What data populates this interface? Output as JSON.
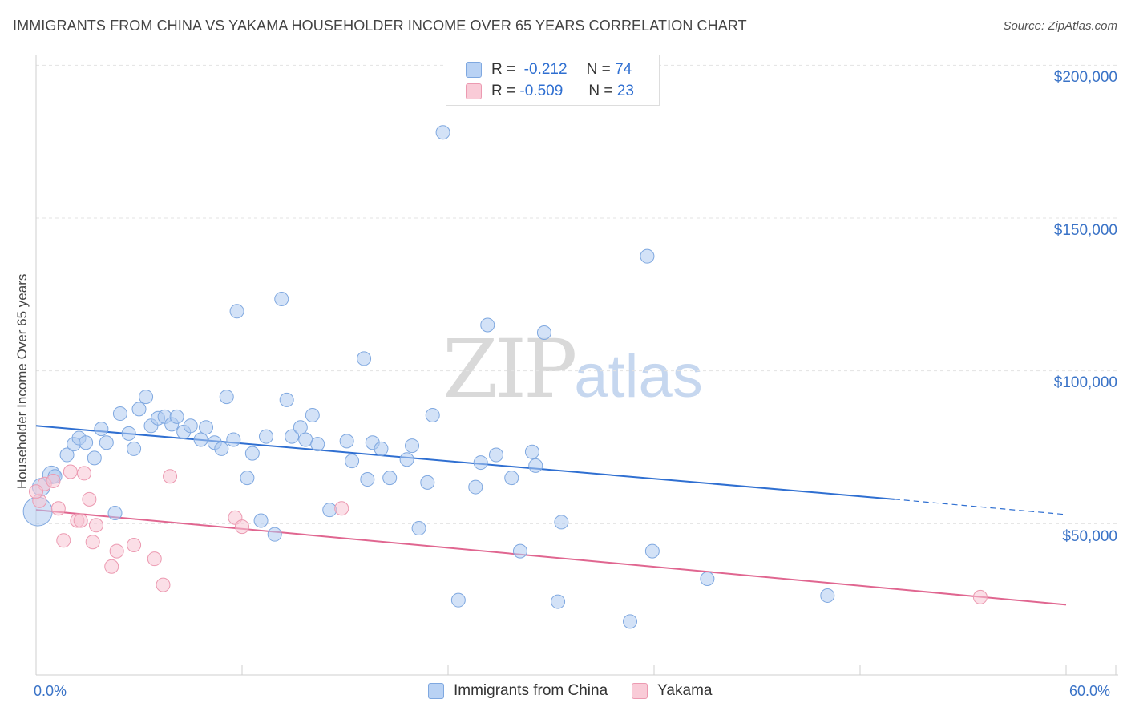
{
  "header": {
    "title": "IMMIGRANTS FROM CHINA VS YAKAMA HOUSEHOLDER INCOME OVER 65 YEARS CORRELATION CHART",
    "source": "Source: ZipAtlas.com"
  },
  "watermark": {
    "zip": "ZIP",
    "atlas": "atlas"
  },
  "legend": {
    "r_label": "R =",
    "n_label": "N =",
    "series": [
      {
        "name": "Immigrants from China",
        "r": "-0.212",
        "n": "74",
        "color": "#2f6fd1"
      },
      {
        "name": "Yakama",
        "r": "-0.509",
        "n": "23",
        "color": "#e06690"
      }
    ]
  },
  "axes": {
    "ylabel": "Householder Income Over 65 years",
    "y_ticks": [
      "$200,000",
      "$150,000",
      "$100,000",
      "$50,000"
    ],
    "x_min_label": "0.0%",
    "x_max_label": "60.0%"
  },
  "chart_data": {
    "type": "scatter",
    "title": "IMMIGRANTS FROM CHINA VS YAKAMA HOUSEHOLDER INCOME OVER 65 YEARS CORRELATION CHART",
    "xlabel": "",
    "ylabel": "Householder Income Over 65 years",
    "xlim": [
      0,
      60
    ],
    "ylim": [
      0,
      210000
    ],
    "y_tick_values": [
      50000,
      100000,
      150000,
      200000
    ],
    "grid": true,
    "series": [
      {
        "name": "Immigrants from China",
        "r": -0.212,
        "n": 74,
        "trend": {
          "x0": 0,
          "y0": 82000,
          "x1": 50,
          "y1": 58000,
          "dash_to_x": 60,
          "dash_to_y": 53000
        },
        "points": [
          [
            0.1,
            54000
          ],
          [
            0.3,
            62000
          ],
          [
            0.9,
            66000
          ],
          [
            1.1,
            65500
          ],
          [
            1.8,
            72500
          ],
          [
            2.2,
            76000
          ],
          [
            2.5,
            78000
          ],
          [
            2.9,
            76500
          ],
          [
            3.4,
            71500
          ],
          [
            3.8,
            81000
          ],
          [
            4.1,
            76500
          ],
          [
            4.6,
            53500
          ],
          [
            4.9,
            86000
          ],
          [
            5.4,
            79500
          ],
          [
            5.7,
            74500
          ],
          [
            6.0,
            87500
          ],
          [
            6.4,
            91500
          ],
          [
            6.7,
            82000
          ],
          [
            7.1,
            84500
          ],
          [
            7.5,
            85000
          ],
          [
            7.9,
            82500
          ],
          [
            8.2,
            85000
          ],
          [
            8.6,
            80000
          ],
          [
            9.0,
            82000
          ],
          [
            9.6,
            77500
          ],
          [
            9.9,
            81500
          ],
          [
            10.4,
            76500
          ],
          [
            10.8,
            74500
          ],
          [
            11.1,
            91500
          ],
          [
            11.5,
            77500
          ],
          [
            11.7,
            119500
          ],
          [
            12.3,
            65000
          ],
          [
            12.6,
            73000
          ],
          [
            13.1,
            51000
          ],
          [
            13.4,
            78500
          ],
          [
            13.9,
            46500
          ],
          [
            14.3,
            123500
          ],
          [
            14.6,
            90500
          ],
          [
            14.9,
            78500
          ],
          [
            15.4,
            81500
          ],
          [
            15.7,
            77500
          ],
          [
            16.1,
            85500
          ],
          [
            16.4,
            76000
          ],
          [
            17.1,
            54500
          ],
          [
            18.1,
            77000
          ],
          [
            18.4,
            70500
          ],
          [
            19.1,
            104000
          ],
          [
            19.3,
            64500
          ],
          [
            19.6,
            76500
          ],
          [
            20.1,
            74500
          ],
          [
            20.6,
            65000
          ],
          [
            21.6,
            71000
          ],
          [
            21.9,
            75500
          ],
          [
            22.3,
            48500
          ],
          [
            22.8,
            63500
          ],
          [
            23.1,
            85500
          ],
          [
            23.7,
            178000
          ],
          [
            24.6,
            25000
          ],
          [
            25.6,
            62000
          ],
          [
            25.9,
            70000
          ],
          [
            26.3,
            115000
          ],
          [
            26.8,
            72500
          ],
          [
            27.7,
            65000
          ],
          [
            28.2,
            41000
          ],
          [
            28.9,
            73500
          ],
          [
            29.1,
            69000
          ],
          [
            29.6,
            112500
          ],
          [
            30.4,
            24500
          ],
          [
            30.6,
            50500
          ],
          [
            34.6,
            18000
          ],
          [
            35.6,
            137500
          ],
          [
            35.9,
            41000
          ],
          [
            39.1,
            32000
          ],
          [
            46.1,
            26500
          ]
        ]
      },
      {
        "name": "Yakama",
        "r": -0.509,
        "n": 23,
        "trend": {
          "x0": 0,
          "y0": 54500,
          "x1": 60,
          "y1": 23500
        },
        "points": [
          [
            0.2,
            57500
          ],
          [
            0.5,
            63000
          ],
          [
            1.0,
            64000
          ],
          [
            1.3,
            55000
          ],
          [
            1.6,
            44500
          ],
          [
            2.0,
            67000
          ],
          [
            2.4,
            51000
          ],
          [
            2.6,
            51000
          ],
          [
            2.8,
            66500
          ],
          [
            3.1,
            58000
          ],
          [
            3.3,
            44000
          ],
          [
            3.5,
            49500
          ],
          [
            4.4,
            36000
          ],
          [
            4.7,
            41000
          ],
          [
            5.7,
            43000
          ],
          [
            6.9,
            38500
          ],
          [
            7.4,
            30000
          ],
          [
            7.8,
            65500
          ],
          [
            11.6,
            52000
          ],
          [
            12.0,
            49000
          ],
          [
            17.8,
            55000
          ],
          [
            55.0,
            26000
          ],
          [
            0.0,
            60500
          ]
        ]
      }
    ]
  }
}
